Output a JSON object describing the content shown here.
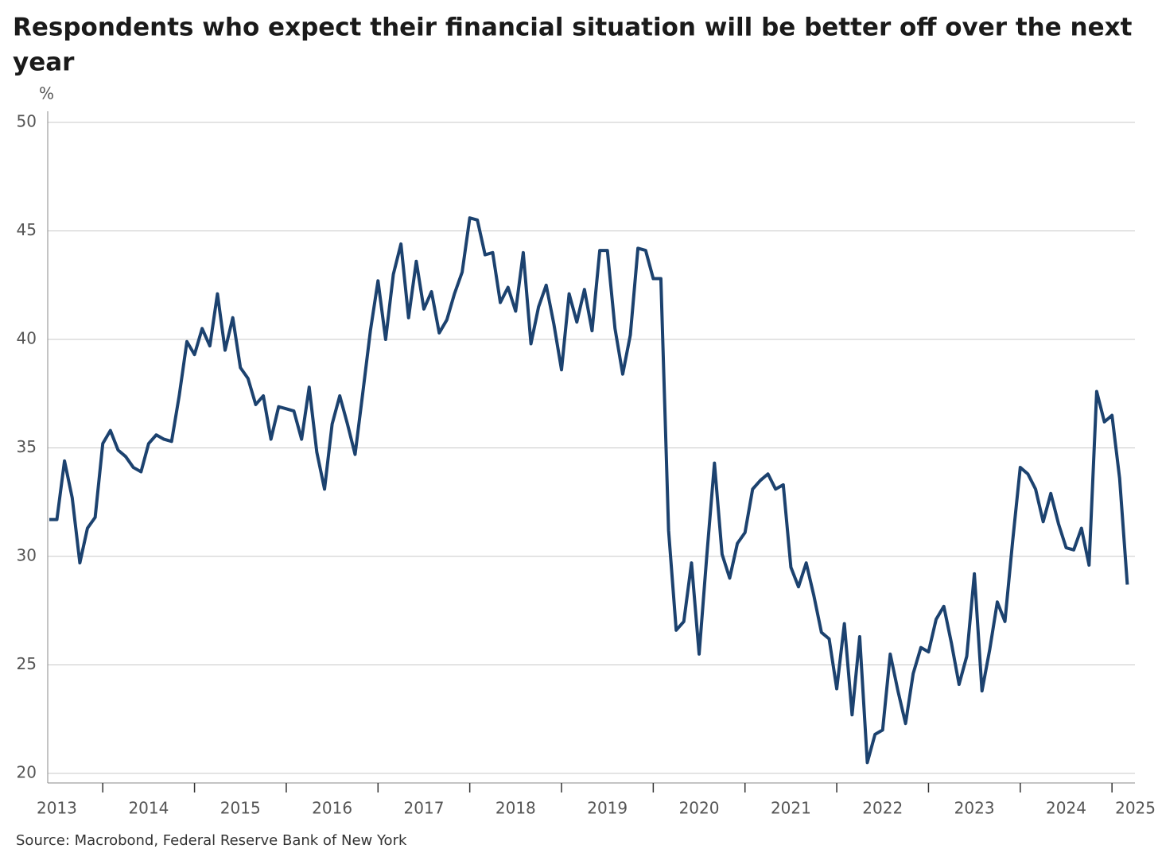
{
  "chart_data": {
    "type": "line",
    "title_lines": [
      "Respondents who expect their financial situation will be better off over the next",
      "year"
    ],
    "y_label": "%",
    "source": "Source: Macrobond, Federal Reserve Bank of New York",
    "x": [
      2013.417,
      2013.5,
      2013.583,
      2013.667,
      2013.75,
      2013.833,
      2013.917,
      2014.0,
      2014.083,
      2014.167,
      2014.25,
      2014.333,
      2014.417,
      2014.5,
      2014.583,
      2014.667,
      2014.75,
      2014.833,
      2014.917,
      2015.0,
      2015.083,
      2015.167,
      2015.25,
      2015.333,
      2015.417,
      2015.5,
      2015.583,
      2015.667,
      2015.75,
      2015.833,
      2015.917,
      2016.0,
      2016.083,
      2016.167,
      2016.25,
      2016.333,
      2016.417,
      2016.5,
      2016.583,
      2016.667,
      2016.75,
      2016.833,
      2016.917,
      2017.0,
      2017.083,
      2017.167,
      2017.25,
      2017.333,
      2017.417,
      2017.5,
      2017.583,
      2017.667,
      2017.75,
      2017.833,
      2017.917,
      2018.0,
      2018.083,
      2018.167,
      2018.25,
      2018.333,
      2018.417,
      2018.5,
      2018.583,
      2018.667,
      2018.75,
      2018.833,
      2018.917,
      2019.0,
      2019.083,
      2019.167,
      2019.25,
      2019.333,
      2019.417,
      2019.5,
      2019.583,
      2019.667,
      2019.75,
      2019.833,
      2019.917,
      2020.0,
      2020.083,
      2020.167,
      2020.25,
      2020.333,
      2020.417,
      2020.5,
      2020.583,
      2020.667,
      2020.75,
      2020.833,
      2020.917,
      2021.0,
      2021.083,
      2021.167,
      2021.25,
      2021.333,
      2021.417,
      2021.5,
      2021.583,
      2021.667,
      2021.75,
      2021.833,
      2021.917,
      2022.0,
      2022.083,
      2022.167,
      2022.25,
      2022.333,
      2022.417,
      2022.5,
      2022.583,
      2022.667,
      2022.75,
      2022.833,
      2022.917,
      2023.0,
      2023.083,
      2023.167,
      2023.25,
      2023.333,
      2023.417,
      2023.5,
      2023.583,
      2023.667,
      2023.75,
      2023.833,
      2023.917,
      2024.0,
      2024.083,
      2024.167,
      2024.25,
      2024.333,
      2024.417,
      2024.5,
      2024.583,
      2024.667,
      2024.75,
      2024.833,
      2024.917,
      2025.0,
      2025.083,
      2025.167
    ],
    "series": [
      {
        "color": "#1c426f",
        "values": [
          31.7,
          31.7,
          34.4,
          32.7,
          29.7,
          31.3,
          31.8,
          35.2,
          35.8,
          34.9,
          34.6,
          34.1,
          33.9,
          35.2,
          35.6,
          35.4,
          35.3,
          37.4,
          39.9,
          39.3,
          40.5,
          39.7,
          42.1,
          39.5,
          41.0,
          38.7,
          38.2,
          37.0,
          37.4,
          35.4,
          36.9,
          36.8,
          36.7,
          35.4,
          37.8,
          34.8,
          33.1,
          36.1,
          37.4,
          36.1,
          34.7,
          37.5,
          40.4,
          42.7,
          40.0,
          43.0,
          44.4,
          41.0,
          43.6,
          41.4,
          42.2,
          40.3,
          40.9,
          42.1,
          43.1,
          45.6,
          45.5,
          43.9,
          44.0,
          41.7,
          42.4,
          41.3,
          44.0,
          39.8,
          41.5,
          42.5,
          40.7,
          38.6,
          42.1,
          40.8,
          42.3,
          40.4,
          44.1,
          44.1,
          40.5,
          38.4,
          40.2,
          44.2,
          44.1,
          42.8,
          42.8,
          31.2,
          26.6,
          27.0,
          29.7,
          25.5,
          30.0,
          34.3,
          30.1,
          29.0,
          30.6,
          31.1,
          33.1,
          33.5,
          33.8,
          33.1,
          33.3,
          29.5,
          28.6,
          29.7,
          28.2,
          26.5,
          26.2,
          23.9,
          26.9,
          22.7,
          26.3,
          20.5,
          21.8,
          22.0,
          25.5,
          23.8,
          22.3,
          24.6,
          25.8,
          25.6,
          27.1,
          27.7,
          26.0,
          24.1,
          25.4,
          29.2,
          23.8,
          25.7,
          27.9,
          27.0,
          30.7,
          34.1,
          33.8,
          33.1,
          31.6,
          32.9,
          31.5,
          30.4,
          30.3,
          31.3,
          29.6,
          37.6,
          36.2,
          36.5,
          33.6,
          28.7
        ]
      }
    ],
    "xlim": [
      2013.4,
      2025.25
    ],
    "xticks": [
      {
        "value": 2013,
        "label": "2013"
      },
      {
        "value": 2014,
        "label": "2014"
      },
      {
        "value": 2015,
        "label": "2015"
      },
      {
        "value": 2016,
        "label": "2016"
      },
      {
        "value": 2017,
        "label": "2017"
      },
      {
        "value": 2018,
        "label": "2018"
      },
      {
        "value": 2019,
        "label": "2019"
      },
      {
        "value": 2020,
        "label": "2020"
      },
      {
        "value": 2021,
        "label": "2021"
      },
      {
        "value": 2022,
        "label": "2022"
      },
      {
        "value": 2023,
        "label": "2023"
      },
      {
        "value": 2024,
        "label": "2024"
      },
      {
        "value": 2025,
        "label": "2025"
      }
    ],
    "ylim": [
      20,
      50
    ],
    "yticks": [
      20,
      25,
      30,
      35,
      40,
      45,
      50
    ],
    "grid": true
  }
}
